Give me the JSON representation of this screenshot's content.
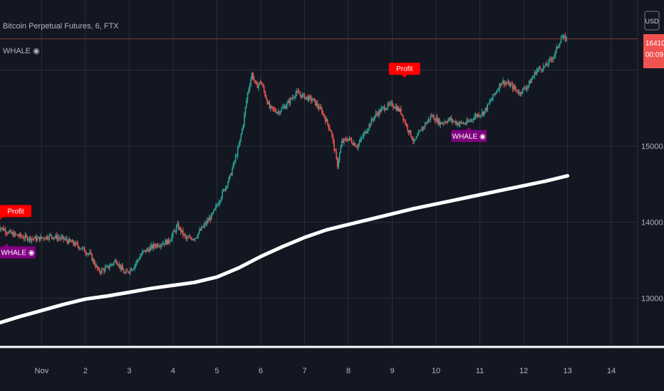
{
  "legend": {
    "symbol": "Bitcoin Perpetual Futures, 6, FTX",
    "indicator": "WHALE ◉"
  },
  "currency_button": "USD",
  "price_tag": {
    "price": "16410.0",
    "countdown": "00:09"
  },
  "colors": {
    "background": "#131722",
    "grid": "#2a2e39",
    "up": "#26a69a",
    "down": "#ef5350",
    "ma": "#ffffff",
    "profit": "#ff0000",
    "whale": "#800080"
  },
  "chart_data": {
    "type": "candlestick",
    "symbol": "Bitcoin Perpetual Futures",
    "interval": "6",
    "exchange": "FTX",
    "x_ticks": [
      "Nov",
      "2",
      "3",
      "4",
      "5",
      "6",
      "7",
      "8",
      "9",
      "10",
      "11",
      "12",
      "13",
      "14"
    ],
    "y_ticks": [
      13000.0,
      14000.0,
      15000.0,
      16000.0
    ],
    "y_tick_labels": [
      "13000.0",
      "14000.0",
      "15000.0",
      ""
    ],
    "ylim": [
      12380,
      16920
    ],
    "xlim": [
      0.05,
      14.6
    ],
    "last_price": 16410.0,
    "price_path": [
      [
        0.0,
        13950
      ],
      [
        0.3,
        13850
      ],
      [
        0.6,
        13800
      ],
      [
        0.9,
        13780
      ],
      [
        1.2,
        13820
      ],
      [
        1.5,
        13780
      ],
      [
        1.8,
        13700
      ],
      [
        2.1,
        13580
      ],
      [
        2.3,
        13350
      ],
      [
        2.5,
        13400
      ],
      [
        2.7,
        13500
      ],
      [
        2.9,
        13320
      ],
      [
        3.1,
        13420
      ],
      [
        3.3,
        13600
      ],
      [
        3.6,
        13700
      ],
      [
        3.9,
        13750
      ],
      [
        4.1,
        13950
      ],
      [
        4.3,
        13780
      ],
      [
        4.5,
        13800
      ],
      [
        4.7,
        13950
      ],
      [
        4.9,
        14100
      ],
      [
        5.1,
        14350
      ],
      [
        5.3,
        14600
      ],
      [
        5.5,
        15000
      ],
      [
        5.6,
        15300
      ],
      [
        5.7,
        15700
      ],
      [
        5.8,
        15950
      ],
      [
        5.9,
        15780
      ],
      [
        6.0,
        15850
      ],
      [
        6.2,
        15500
      ],
      [
        6.4,
        15450
      ],
      [
        6.6,
        15550
      ],
      [
        6.8,
        15700
      ],
      [
        7.0,
        15650
      ],
      [
        7.2,
        15600
      ],
      [
        7.4,
        15450
      ],
      [
        7.6,
        15200
      ],
      [
        7.75,
        14750
      ],
      [
        7.85,
        15050
      ],
      [
        8.0,
        15100
      ],
      [
        8.2,
        15000
      ],
      [
        8.4,
        15200
      ],
      [
        8.6,
        15400
      ],
      [
        8.8,
        15500
      ],
      [
        9.0,
        15550
      ],
      [
        9.2,
        15450
      ],
      [
        9.3,
        15300
      ],
      [
        9.5,
        15050
      ],
      [
        9.7,
        15250
      ],
      [
        9.9,
        15400
      ],
      [
        10.1,
        15300
      ],
      [
        10.3,
        15350
      ],
      [
        10.5,
        15300
      ],
      [
        10.7,
        15300
      ],
      [
        10.9,
        15400
      ],
      [
        11.1,
        15450
      ],
      [
        11.3,
        15650
      ],
      [
        11.5,
        15850
      ],
      [
        11.7,
        15800
      ],
      [
        11.9,
        15700
      ],
      [
        12.1,
        15800
      ],
      [
        12.3,
        16000
      ],
      [
        12.5,
        16050
      ],
      [
        12.7,
        16200
      ],
      [
        12.85,
        16420
      ],
      [
        13.0,
        16410
      ]
    ],
    "ma_path": [
      [
        0.05,
        12680
      ],
      [
        0.5,
        12760
      ],
      [
        1.0,
        12840
      ],
      [
        1.5,
        12920
      ],
      [
        2.0,
        12990
      ],
      [
        2.5,
        13030
      ],
      [
        3.0,
        13080
      ],
      [
        3.5,
        13130
      ],
      [
        4.0,
        13170
      ],
      [
        4.5,
        13210
      ],
      [
        5.0,
        13280
      ],
      [
        5.5,
        13400
      ],
      [
        6.0,
        13550
      ],
      [
        6.5,
        13680
      ],
      [
        7.0,
        13800
      ],
      [
        7.5,
        13900
      ],
      [
        8.0,
        13970
      ],
      [
        8.5,
        14040
      ],
      [
        9.0,
        14110
      ],
      [
        9.5,
        14180
      ],
      [
        10.0,
        14240
      ],
      [
        10.5,
        14300
      ],
      [
        11.0,
        14360
      ],
      [
        11.5,
        14420
      ],
      [
        12.0,
        14480
      ],
      [
        12.5,
        14540
      ],
      [
        13.0,
        14610
      ]
    ],
    "annotations": [
      {
        "text": "Profit",
        "x": 0.05,
        "y": 14030,
        "color": "#ff0000",
        "position": "above"
      },
      {
        "text": "WHALE ◉",
        "x": 0.2,
        "y": 13720,
        "color": "#800080",
        "position": "below"
      },
      {
        "text": "Profit",
        "x": 9.28,
        "y": 15900,
        "color": "#ff0000",
        "position": "above"
      },
      {
        "text": "WHALE ◉",
        "x": 10.75,
        "y": 15250,
        "color": "#800080",
        "position": "below"
      }
    ]
  }
}
